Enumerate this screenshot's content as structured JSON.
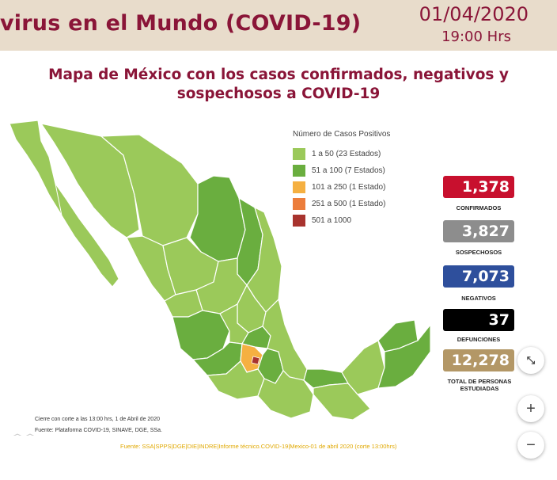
{
  "header": {
    "title": "virus en el Mundo (COVID-19)",
    "date": "01/04/2020",
    "time": "19:00 Hrs"
  },
  "map_title": {
    "line1": "Mapa de México con los casos confirmados, negativos y",
    "line2": "sospechosos a COVID-19"
  },
  "legend": {
    "title": "Número de Casos Positivos",
    "items": [
      {
        "label": "1 a 50 (23 Estados)",
        "color": "#9bc95a"
      },
      {
        "label": "51 a 100 (7 Estados)",
        "color": "#6aae3f"
      },
      {
        "label": "101 a 250 (1 Estado)",
        "color": "#f5b041"
      },
      {
        "label": "251 a 500 (1 Estado)",
        "color": "#ec7d3b"
      },
      {
        "label": "501 a 1000",
        "color": "#a8332e"
      }
    ]
  },
  "stats": [
    {
      "value": "1,378",
      "label": "CONFIRMADOS",
      "color": "#c8102e"
    },
    {
      "value": "3,827",
      "label": "SOSPECHOSOS",
      "color": "#8d8d8d"
    },
    {
      "value": "7,073",
      "label": "NEGATIVOS",
      "color": "#2e4f9c"
    },
    {
      "value": "37",
      "label": "DEFUNCIONES",
      "color": "#000000"
    },
    {
      "value": "12,278",
      "label": "TOTAL DE PERSONAS ESTUDIADAS",
      "color": "#b39766"
    }
  ],
  "notes": {
    "cutoff": "Cierre con corte a las 13:00 hrs, 1 de Abril de 2020",
    "platform": "Fuente: Plataforma COVID-19, SINAVE, DGE, SSa."
  },
  "source": "Fuente: SSA|SPPS|DGE|DIE|INDRE|Informe técnico.COVID-19|Mexico-01 de abril 2020 (corte 13:00hrs)",
  "controls": {
    "collapse_icon": "collapse-icon",
    "zoom_in": "+",
    "zoom_out": "−"
  }
}
